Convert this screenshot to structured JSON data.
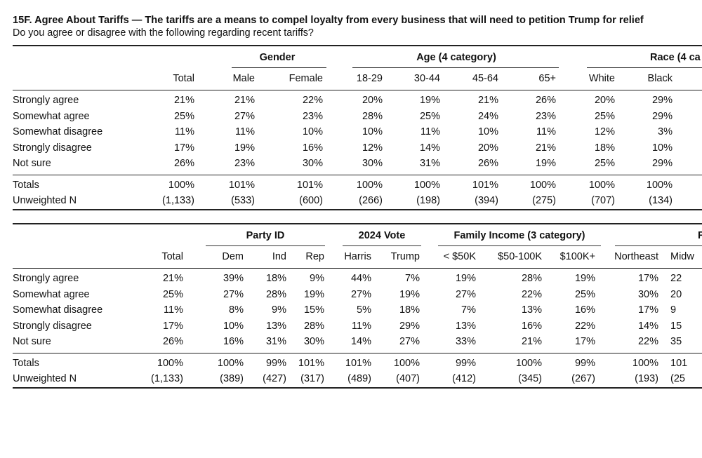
{
  "title": "15F. Agree About Tariffs — The tariffs are a means to compel loyalty from every business that will need to petition Trump for relief",
  "subtitle": "Do you agree or disagree with the following regarding recent tariffs?",
  "table1": {
    "groups": [
      "Gender",
      "Age (4 category)",
      "Race (4 ca"
    ],
    "columns": [
      "Total",
      "Male",
      "Female",
      "18-29",
      "30-44",
      "45-64",
      "65+",
      "White",
      "Black"
    ],
    "rows": [
      {
        "label": "Strongly agree",
        "values": [
          "21%",
          "21%",
          "22%",
          "20%",
          "19%",
          "21%",
          "26%",
          "20%",
          "29%"
        ]
      },
      {
        "label": "Somewhat agree",
        "values": [
          "25%",
          "27%",
          "23%",
          "28%",
          "25%",
          "24%",
          "23%",
          "25%",
          "29%"
        ]
      },
      {
        "label": "Somewhat disagree",
        "values": [
          "11%",
          "11%",
          "10%",
          "10%",
          "11%",
          "10%",
          "11%",
          "12%",
          "3%"
        ]
      },
      {
        "label": "Strongly disagree",
        "values": [
          "17%",
          "19%",
          "16%",
          "12%",
          "14%",
          "20%",
          "21%",
          "18%",
          "10%"
        ]
      },
      {
        "label": "Not sure",
        "values": [
          "26%",
          "23%",
          "30%",
          "30%",
          "31%",
          "26%",
          "19%",
          "25%",
          "29%"
        ]
      }
    ],
    "totals": {
      "label": "Totals",
      "values": [
        "100%",
        "101%",
        "101%",
        "100%",
        "100%",
        "101%",
        "100%",
        "100%",
        "100%"
      ]
    },
    "unweighted": {
      "label": "Unweighted N",
      "values": [
        "(1,133)",
        "(533)",
        "(600)",
        "(266)",
        "(198)",
        "(394)",
        "(275)",
        "(707)",
        "(134)"
      ]
    }
  },
  "table2": {
    "groups": [
      "Party ID",
      "2024 Vote",
      "Family Income (3 category)",
      "F"
    ],
    "columns": [
      "Total",
      "Dem",
      "Ind",
      "Rep",
      "Harris",
      "Trump",
      "< $50K",
      "$50-100K",
      "$100K+",
      "Northeast",
      "Midw"
    ],
    "rows": [
      {
        "label": "Strongly agree",
        "values": [
          "21%",
          "39%",
          "18%",
          "9%",
          "44%",
          "7%",
          "19%",
          "28%",
          "19%",
          "17%",
          "22"
        ]
      },
      {
        "label": "Somewhat agree",
        "values": [
          "25%",
          "27%",
          "28%",
          "19%",
          "27%",
          "19%",
          "27%",
          "22%",
          "25%",
          "30%",
          "20"
        ]
      },
      {
        "label": "Somewhat disagree",
        "values": [
          "11%",
          "8%",
          "9%",
          "15%",
          "5%",
          "18%",
          "7%",
          "13%",
          "16%",
          "17%",
          "9"
        ]
      },
      {
        "label": "Strongly disagree",
        "values": [
          "17%",
          "10%",
          "13%",
          "28%",
          "11%",
          "29%",
          "13%",
          "16%",
          "22%",
          "14%",
          "15"
        ]
      },
      {
        "label": "Not sure",
        "values": [
          "26%",
          "16%",
          "31%",
          "30%",
          "14%",
          "27%",
          "33%",
          "21%",
          "17%",
          "22%",
          "35"
        ]
      }
    ],
    "totals": {
      "label": "Totals",
      "values": [
        "100%",
        "100%",
        "99%",
        "101%",
        "101%",
        "100%",
        "99%",
        "100%",
        "99%",
        "100%",
        "101"
      ]
    },
    "unweighted": {
      "label": "Unweighted N",
      "values": [
        "(1,133)",
        "(389)",
        "(427)",
        "(317)",
        "(489)",
        "(407)",
        "(412)",
        "(345)",
        "(267)",
        "(193)",
        "(25"
      ]
    }
  }
}
